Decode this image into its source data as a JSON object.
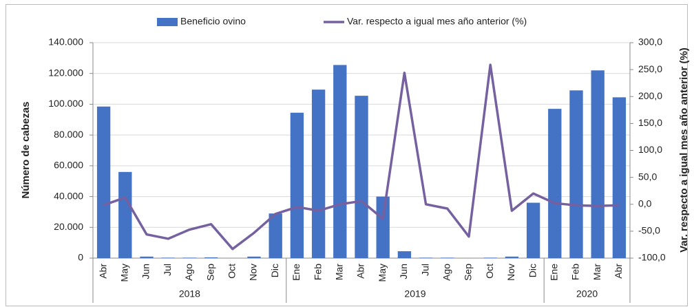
{
  "chart_data": {
    "type": "bar-line",
    "groups": [
      {
        "label": "2018",
        "categories": [
          "Abr",
          "May",
          "Jun",
          "Jul",
          "Ago",
          "Sep",
          "Oct",
          "Nov",
          "Dic"
        ]
      },
      {
        "label": "2019",
        "categories": [
          "Ene",
          "Feb",
          "Mar",
          "Abr",
          "May",
          "Jun",
          "Jul",
          "Ago",
          "Sep",
          "Oct",
          "Nov",
          "Dic"
        ]
      },
      {
        "label": "2020",
        "categories": [
          "Ene",
          "Feb",
          "Mar",
          "Abr"
        ]
      }
    ],
    "series": [
      {
        "name": "Beneficio ovino",
        "type": "bar",
        "color": "#4472c4",
        "values": [
          98500,
          56000,
          1000,
          300,
          300,
          500,
          0,
          1000,
          29000,
          94500,
          109500,
          125500,
          105500,
          40000,
          4500,
          300,
          300,
          0,
          300,
          1000,
          36000,
          97000,
          109000,
          122000,
          104500
        ]
      },
      {
        "name": "Var. respecto a igual mes año anterior (%)",
        "type": "line",
        "axis": "y2",
        "color": "#7560a0",
        "values": [
          -1.5,
          12.5,
          -56,
          -64,
          -47,
          -37,
          -83,
          -53,
          -18,
          -5,
          -12,
          0,
          6,
          -27,
          244,
          0,
          -8,
          -60,
          259,
          -12,
          20,
          2,
          -2,
          -3,
          -2
        ]
      }
    ],
    "y_label": "Número de cabezas",
    "y2_label": "Var. respecto a igual mes año anterior (%)",
    "ylim": [
      0,
      140000
    ],
    "yticks": [
      0,
      {
        "value": 20000,
        "label": "20.000"
      },
      {
        "value": 40000,
        "label": "40.000"
      },
      {
        "value": 60000,
        "label": "60.000"
      },
      {
        "value": 80000,
        "label": "80.000"
      },
      {
        "value": 100000,
        "label": "100.000"
      },
      {
        "value": 120000,
        "label": "120.000"
      },
      {
        "value": 140000,
        "label": "140.000"
      }
    ],
    "y2lim": [
      -100,
      300
    ],
    "y2ticks": [
      {
        "value": -100,
        "label": "-100,0"
      },
      {
        "value": -50,
        "label": "-50,0"
      },
      {
        "value": 0,
        "label": "0,0"
      },
      {
        "value": 50,
        "label": "50,0"
      },
      {
        "value": 100,
        "label": "100,0"
      },
      {
        "value": 150,
        "label": "150,0"
      },
      {
        "value": 200,
        "label": "200,0"
      },
      {
        "value": 250,
        "label": "250,0"
      },
      {
        "value": 300,
        "label": "300,0"
      }
    ]
  }
}
